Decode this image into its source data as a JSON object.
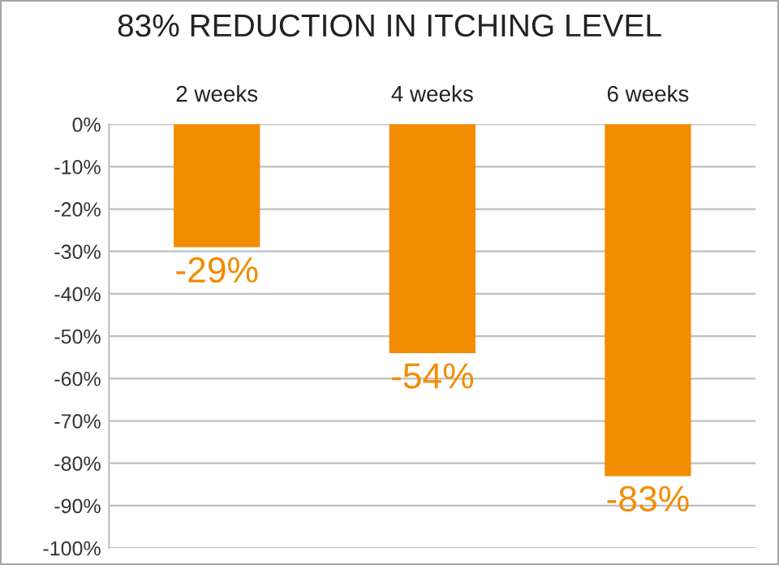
{
  "chart_data": {
    "type": "bar",
    "title": "83% REDUCTION IN ITCHING LEVEL",
    "categories": [
      "2 weeks",
      "4 weeks",
      "6 weeks"
    ],
    "values": [
      -29,
      -54,
      -83
    ],
    "color": "#f28c00",
    "value_labels": [
      "-29%",
      "-54%",
      "-83%"
    ],
    "ylim": [
      -100,
      0
    ],
    "yticks": [
      {
        "value": 0,
        "label": "0%"
      },
      {
        "value": -10,
        "label": "-10%"
      },
      {
        "value": -20,
        "label": "-20%"
      },
      {
        "value": -30,
        "label": "-30%"
      },
      {
        "value": -40,
        "label": "-40%"
      },
      {
        "value": -50,
        "label": "-50%"
      },
      {
        "value": -60,
        "label": "-60%"
      },
      {
        "value": -70,
        "label": "-70%"
      },
      {
        "value": -80,
        "label": "-80%"
      },
      {
        "value": -90,
        "label": "-90%"
      },
      {
        "value": -100,
        "label": "-100%"
      }
    ],
    "grid": "y"
  }
}
